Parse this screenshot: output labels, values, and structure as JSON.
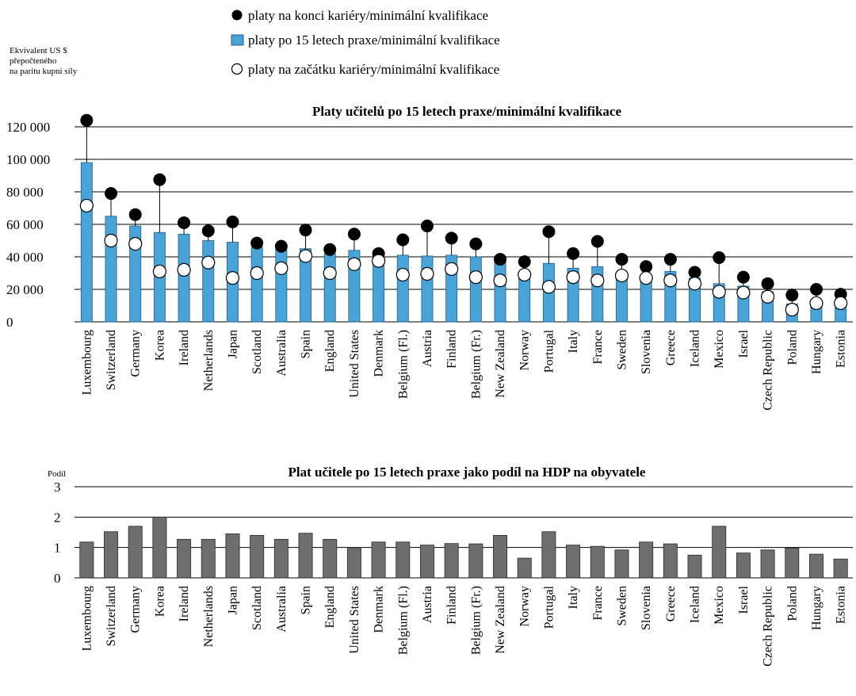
{
  "chart_data": [
    {
      "type": "bar",
      "title": "Platy učitelů po 15 letech praxe/minimální kvalifikace",
      "ylabel": "Ekvivalent US $ přepočteného na paritu kupní síly",
      "ylabel_lines": [
        "Ekvivalent US $",
        "přepočteného",
        "na paritu kupní síly"
      ],
      "ylim": [
        0,
        120000
      ],
      "yticks": [
        0,
        20000,
        40000,
        60000,
        80000,
        100000,
        120000
      ],
      "ytick_labels": [
        "0",
        "20 000",
        "40 000",
        "60 000",
        "80 000",
        "100 000",
        "120 000"
      ],
      "grid": true,
      "legend_position": "top",
      "colors": {
        "bar": "#4aa3d6",
        "bar_border": "#1f5f88",
        "top_marker": "#000000",
        "start_marker": "#ffffff"
      },
      "categories": [
        "Luxembourg",
        "Switzerland",
        "Germany",
        "Korea",
        "Ireland",
        "Netherlands",
        "Japan",
        "Scotland",
        "Australia",
        "Spain",
        "England",
        "United States",
        "Denmark",
        "Belgium (Fl.)",
        "Austria",
        "Finland",
        "Belgium (Fr.)",
        "New Zealand",
        "Norway",
        "Portugal",
        "Italy",
        "France",
        "Sweden",
        "Slovenia",
        "Greece",
        "Iceland",
        "Mexico",
        "Israel",
        "Czech Republic",
        "Poland",
        "Hungary",
        "Estonia"
      ],
      "series": [
        {
          "name": "platy na konci kariéry/minimální kvalifikace",
          "marker": "filled-circle",
          "values": [
            124000,
            79000,
            66000,
            87500,
            61000,
            56000,
            61500,
            48500,
            46500,
            56500,
            44500,
            54000,
            42000,
            50500,
            59000,
            51500,
            48000,
            38500,
            37000,
            55500,
            42000,
            49500,
            38500,
            34000,
            38500,
            30500,
            39500,
            27500,
            23500,
            16500,
            20000,
            17000
          ]
        },
        {
          "name": "platy po 15 letech praxe/minimální kvalifikace",
          "marker": "bar",
          "values": [
            98000,
            65000,
            59000,
            55000,
            54000,
            50000,
            49000,
            46000,
            45000,
            45000,
            42000,
            44000,
            41000,
            41000,
            40500,
            41000,
            40000,
            37000,
            30000,
            36000,
            33000,
            34000,
            30500,
            29000,
            31000,
            27000,
            23500,
            22000,
            18500,
            11000,
            13000,
            14000
          ]
        },
        {
          "name": "platy na začátku kariéry/minimální kvalifikace",
          "marker": "open-circle",
          "values": [
            71500,
            50000,
            48000,
            31000,
            32000,
            36500,
            27000,
            30000,
            33000,
            40500,
            30000,
            35500,
            37500,
            29000,
            29500,
            32500,
            27500,
            25500,
            29000,
            21500,
            27500,
            25500,
            28500,
            27000,
            25500,
            23500,
            18500,
            18000,
            15500,
            7500,
            11500,
            11500
          ]
        }
      ]
    },
    {
      "type": "bar",
      "title": "Plat učitele po 15 letech praxe jako podíl na HDP na obyvatele",
      "ylabel": "Podíl",
      "ylim": [
        0,
        3
      ],
      "yticks": [
        0,
        1,
        2,
        3
      ],
      "ytick_labels": [
        "0",
        "1",
        "2",
        "3"
      ],
      "grid": true,
      "colors": {
        "bar": "#6e6e6e",
        "bar_border": "#2a2a2a"
      },
      "categories": [
        "Luxembourg",
        "Switzerland",
        "Germany",
        "Korea",
        "Ireland",
        "Netherlands",
        "Japan",
        "Scotland",
        "Australia",
        "Spain",
        "England",
        "United States",
        "Denmark",
        "Belgium (Fl.)",
        "Austria",
        "Finland",
        "Belgium (Fr.)",
        "New Zealand",
        "Norway",
        "Portugal",
        "Italy",
        "France",
        "Sweden",
        "Slovenia",
        "Greece",
        "Iceland",
        "Mexico",
        "Israel",
        "Czech Republic",
        "Poland",
        "Hungary",
        "Estonia"
      ],
      "values": [
        1.18,
        1.52,
        1.7,
        2.0,
        1.27,
        1.27,
        1.45,
        1.4,
        1.27,
        1.47,
        1.27,
        0.97,
        1.18,
        1.18,
        1.08,
        1.13,
        1.12,
        1.4,
        0.65,
        1.52,
        1.08,
        1.04,
        0.92,
        1.18,
        1.12,
        0.75,
        1.7,
        0.82,
        0.92,
        0.98,
        0.78,
        0.62
      ]
    }
  ]
}
